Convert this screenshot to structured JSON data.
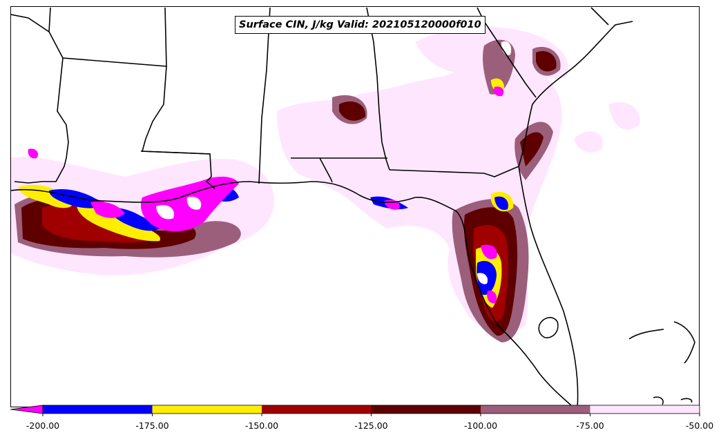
{
  "title": "Surface CIN, J/kg Valid: 202105120000f010",
  "colorbar": {
    "colors": [
      "#ff00ff",
      "#0000ff",
      "#ffee00",
      "#a00000",
      "#5e0000",
      "#9b5f7b",
      "#ffe6ff"
    ],
    "labels": [
      "-200.00",
      "-175.00",
      "-150.00",
      "-125.00",
      "-100.00",
      "-75.00",
      "-50.00"
    ]
  },
  "palette": {
    "magenta": "#ff00ff",
    "blue": "#0000ff",
    "yellow": "#ffee00",
    "red": "#a00000",
    "darkred": "#5e0000",
    "mauve": "#9b5f7b",
    "pink": "#ffe6ff"
  }
}
